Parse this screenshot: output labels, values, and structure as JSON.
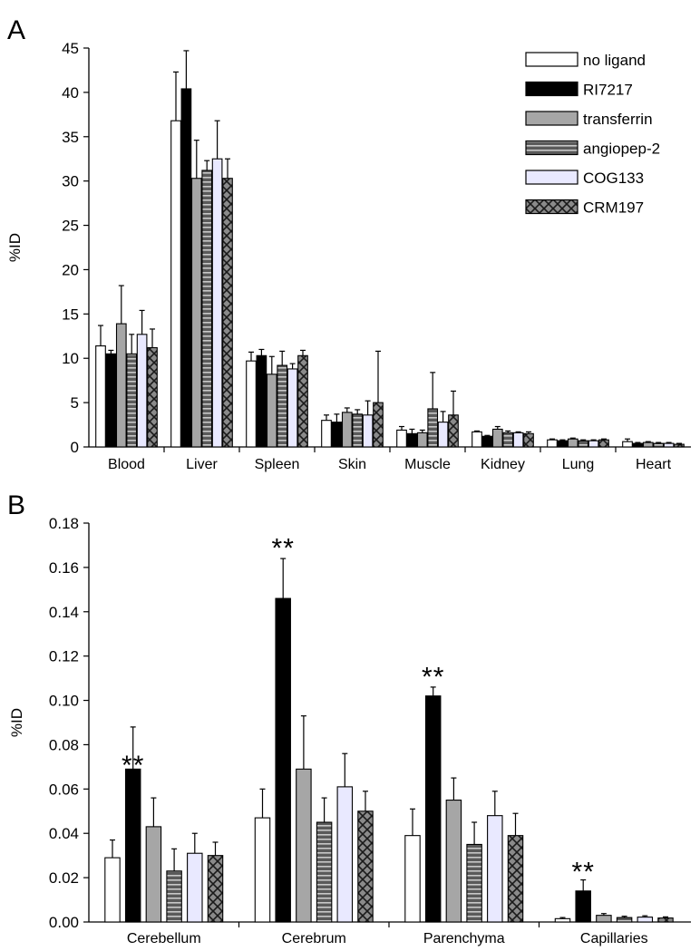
{
  "series_styles": [
    {
      "name": "no ligand",
      "fill": "#ffffff",
      "pattern": "none"
    },
    {
      "name": "RI7217",
      "fill": "#000000",
      "pattern": "none"
    },
    {
      "name": "transferrin",
      "fill": "#a6a6a6",
      "pattern": "none"
    },
    {
      "name": "angiopep-2",
      "fill": "#5a5a5a",
      "pattern": "hstripes"
    },
    {
      "name": "COG133",
      "fill": "#e9e9ff",
      "pattern": "none"
    },
    {
      "name": "CRM197",
      "fill": "#8a8a8a",
      "pattern": "cross"
    }
  ],
  "chart_data": [
    {
      "panel": "A",
      "type": "bar",
      "title": "",
      "xlabel": "",
      "ylabel": "%ID",
      "ylim": [
        0,
        45
      ],
      "yticks": [
        "0",
        "5",
        "10",
        "15",
        "20",
        "25",
        "30",
        "35",
        "40",
        "45"
      ],
      "ytick_values": [
        0,
        5,
        10,
        15,
        20,
        25,
        30,
        35,
        40,
        45
      ],
      "legend": "top-right",
      "categories": [
        "Blood",
        "Liver",
        "Spleen",
        "Skin",
        "Muscle",
        "Kidney",
        "Lung",
        "Heart"
      ],
      "series": [
        {
          "name": "no ligand",
          "values": [
            11.4,
            36.8,
            9.7,
            3.0,
            1.9,
            1.7,
            0.8,
            0.6
          ],
          "errors": [
            2.3,
            5.5,
            1.0,
            0.6,
            0.4,
            0.1,
            0.1,
            0.3
          ]
        },
        {
          "name": "RI7217",
          "values": [
            10.5,
            40.4,
            10.3,
            2.8,
            1.5,
            1.2,
            0.7,
            0.4
          ],
          "errors": [
            0.4,
            4.3,
            0.7,
            0.9,
            0.5,
            0.1,
            0.1,
            0.1
          ]
        },
        {
          "name": "transferrin",
          "values": [
            13.9,
            30.3,
            8.2,
            3.9,
            1.6,
            2.0,
            0.9,
            0.5
          ],
          "errors": [
            4.3,
            4.3,
            2.0,
            0.5,
            0.3,
            0.3,
            0.1,
            0.1
          ]
        },
        {
          "name": "angiopep-2",
          "values": [
            10.5,
            31.2,
            9.2,
            3.7,
            4.3,
            1.6,
            0.7,
            0.4
          ],
          "errors": [
            2.2,
            1.1,
            1.6,
            0.5,
            4.1,
            0.2,
            0.1,
            0.1
          ]
        },
        {
          "name": "COG133",
          "values": [
            12.7,
            32.5,
            8.8,
            3.6,
            2.8,
            1.6,
            0.7,
            0.4
          ],
          "errors": [
            2.7,
            4.3,
            0.6,
            1.6,
            1.2,
            0.1,
            0.1,
            0.1
          ]
        },
        {
          "name": "CRM197",
          "values": [
            11.2,
            30.3,
            10.3,
            5.0,
            3.6,
            1.5,
            0.8,
            0.3
          ],
          "errors": [
            2.1,
            2.2,
            0.6,
            5.8,
            2.7,
            0.2,
            0.1,
            0.1
          ]
        }
      ]
    },
    {
      "panel": "B",
      "type": "bar",
      "title": "",
      "xlabel": "",
      "ylabel": "%ID",
      "ylim": [
        0,
        0.18
      ],
      "yticks": [
        "0.00",
        "0.02",
        "0.04",
        "0.06",
        "0.08",
        "0.10",
        "0.12",
        "0.14",
        "0.16",
        "0.18"
      ],
      "ytick_values": [
        0,
        0.02,
        0.04,
        0.06,
        0.08,
        0.1,
        0.12,
        0.14,
        0.16,
        0.18
      ],
      "categories": [
        "Cerebellum",
        "Cerebrum",
        "Parenchyma",
        "Capillaries"
      ],
      "series": [
        {
          "name": "no ligand",
          "values": [
            0.029,
            0.047,
            0.039,
            0.0015
          ],
          "errors": [
            0.008,
            0.013,
            0.012,
            0.0005
          ]
        },
        {
          "name": "RI7217",
          "values": [
            0.069,
            0.146,
            0.102,
            0.014
          ],
          "errors": [
            0.019,
            0.018,
            0.004,
            0.005
          ]
        },
        {
          "name": "transferrin",
          "values": [
            0.043,
            0.069,
            0.055,
            0.003
          ],
          "errors": [
            0.013,
            0.024,
            0.01,
            0.0008
          ]
        },
        {
          "name": "angiopep-2",
          "values": [
            0.023,
            0.045,
            0.035,
            0.002
          ],
          "errors": [
            0.01,
            0.011,
            0.01,
            0.0006
          ]
        },
        {
          "name": "COG133",
          "values": [
            0.031,
            0.061,
            0.048,
            0.0022
          ],
          "errors": [
            0.009,
            0.015,
            0.011,
            0.0006
          ]
        },
        {
          "name": "CRM197",
          "values": [
            0.03,
            0.05,
            0.039,
            0.0018
          ],
          "errors": [
            0.006,
            0.009,
            0.01,
            0.0005
          ]
        }
      ],
      "annotations": [
        {
          "text": "**",
          "category": "Cerebellum",
          "value": 0.074
        },
        {
          "text": "**",
          "category": "Cerebrum",
          "value": 0.172
        },
        {
          "text": "**",
          "category": "Parenchyma",
          "value": 0.114
        },
        {
          "text": "**",
          "category": "Capillaries",
          "value": 0.026
        }
      ]
    }
  ]
}
